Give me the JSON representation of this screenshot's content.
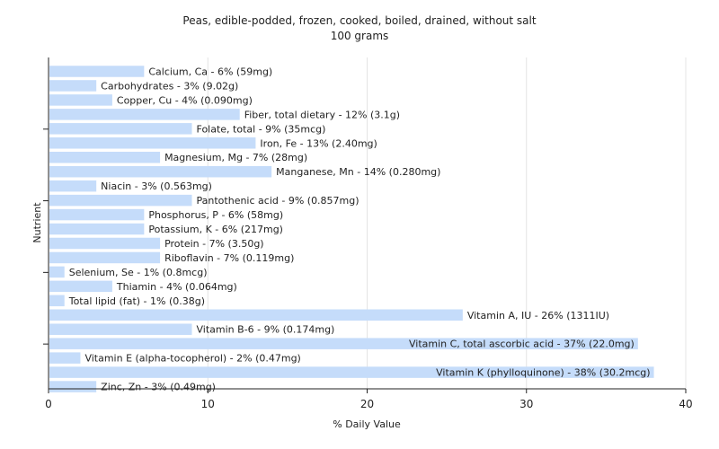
{
  "chart_data": {
    "type": "bar",
    "orientation": "horizontal",
    "title": "Peas, edible-podded, frozen, cooked, boiled, drained, without salt",
    "subtitle": "100 grams",
    "xlabel": "% Daily Value",
    "ylabel": "Nutrient",
    "xlim": [
      0,
      40
    ],
    "xticks": [
      "0",
      "10",
      "20",
      "30",
      "40"
    ],
    "grid": true,
    "bar_color": "#c5dcfa",
    "categories": [
      "Calcium, Ca",
      "Carbohydrates",
      "Copper, Cu",
      "Fiber, total dietary",
      "Folate, total",
      "Iron, Fe",
      "Magnesium, Mg",
      "Manganese, Mn",
      "Niacin",
      "Pantothenic acid",
      "Phosphorus, P",
      "Potassium, K",
      "Protein",
      "Riboflavin",
      "Selenium, Se",
      "Thiamin",
      "Total lipid (fat)",
      "Vitamin A, IU",
      "Vitamin B-6",
      "Vitamin C, total ascorbic acid",
      "Vitamin E (alpha-tocopherol)",
      "Vitamin K (phylloquinone)",
      "Zinc, Zn"
    ],
    "values": [
      6,
      3,
      4,
      12,
      9,
      13,
      7,
      14,
      3,
      9,
      6,
      6,
      7,
      7,
      1,
      4,
      1,
      26,
      9,
      37,
      2,
      38,
      3
    ],
    "labels": [
      "Calcium, Ca - 6% (59mg)",
      "Carbohydrates - 3% (9.02g)",
      "Copper, Cu - 4% (0.090mg)",
      "Fiber, total dietary - 12% (3.1g)",
      "Folate, total - 9% (35mcg)",
      "Iron, Fe - 13% (2.40mg)",
      "Magnesium, Mg - 7% (28mg)",
      "Manganese, Mn - 14% (0.280mg)",
      "Niacin - 3% (0.563mg)",
      "Pantothenic acid - 9% (0.857mg)",
      "Phosphorus, P - 6% (58mg)",
      "Potassium, K - 6% (217mg)",
      "Protein - 7% (3.50g)",
      "Riboflavin - 7% (0.119mg)",
      "Selenium, Se - 1% (0.8mcg)",
      "Thiamin - 4% (0.064mg)",
      "Total lipid (fat) - 1% (0.38g)",
      "Vitamin A, IU - 26% (1311IU)",
      "Vitamin B-6 - 9% (0.174mg)",
      "Vitamin C, total ascorbic acid - 37% (22.0mg)",
      "Vitamin E (alpha-tocopherol) - 2% (0.47mg)",
      "Vitamin K (phylloquinone) - 38% (30.2mcg)",
      "Zinc, Zn - 3% (0.49mg)"
    ]
  }
}
